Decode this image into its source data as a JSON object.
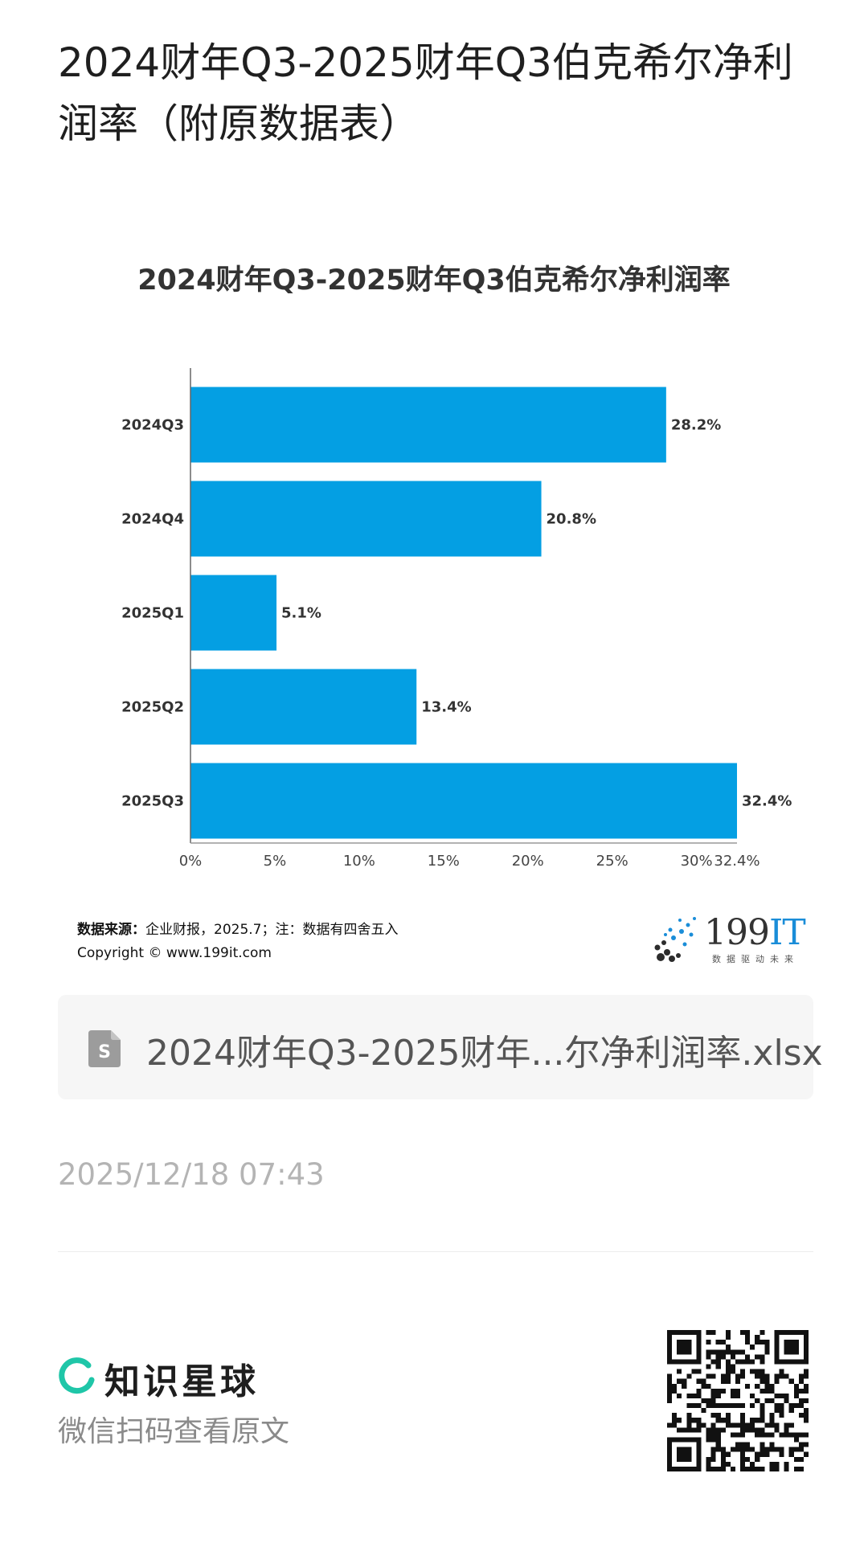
{
  "post": {
    "title": "2024财年Q3-2025财年Q3伯克希尔净利润率（附原数据表）"
  },
  "chart_data": {
    "type": "bar",
    "orientation": "horizontal",
    "title": "2024财年Q3-2025财年Q3伯克希尔净利润率",
    "categories": [
      "2024Q3",
      "2024Q4",
      "2025Q1",
      "2025Q2",
      "2025Q3"
    ],
    "values": [
      28.2,
      20.8,
      5.1,
      13.4,
      32.4
    ],
    "value_labels": [
      "28.2%",
      "20.8%",
      "5.1%",
      "13.4%",
      "32.4%"
    ],
    "xlim": [
      0,
      32.4
    ],
    "x_ticks": [
      0,
      5,
      10,
      15,
      20,
      25,
      30,
      32.4
    ],
    "x_tick_labels": [
      "0%",
      "5%",
      "10%",
      "15%",
      "20%",
      "25%",
      "30%",
      "32.4%"
    ],
    "xlabel": "",
    "ylabel": "",
    "bar_color": "#049fe3",
    "grid": false,
    "legend": "none"
  },
  "source": {
    "label": "数据来源：",
    "text": "企业财报，2025.7；注：数据有四舍五入",
    "copyright": "Copyright © www.199it.com"
  },
  "logo": {
    "name_digits": "199",
    "name_letters": "IT",
    "tagline": "数据驱动未来"
  },
  "attachment": {
    "filename": "2024财年Q3-2025财年...尔净利润率.xlsx",
    "icon": "spreadsheet-file-icon"
  },
  "timestamp": "2025/12/18 07:43",
  "footer": {
    "brand": "知识星球",
    "brand_color": "#1fc6a8",
    "hint": "微信扫码查看原文"
  }
}
